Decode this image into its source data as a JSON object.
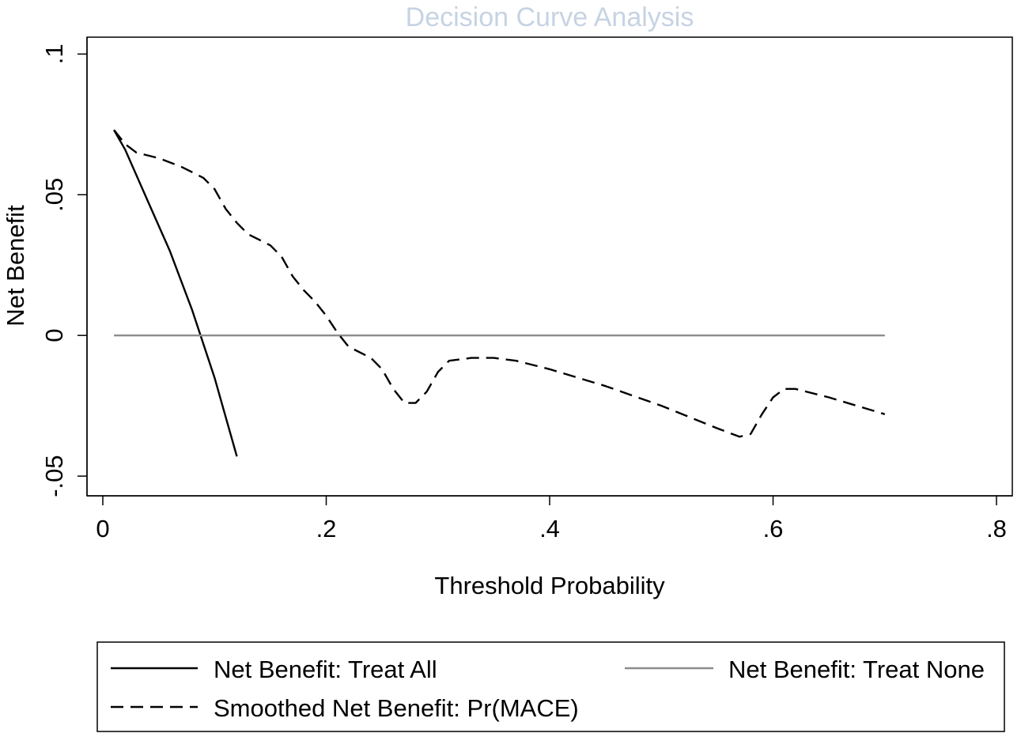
{
  "chart_data": {
    "type": "line",
    "title": "Decision Curve Analysis",
    "xlabel": "Threshold Probability",
    "ylabel": "Net Benefit",
    "xlim": [
      -0.02,
      0.8
    ],
    "ylim": [
      -0.057,
      0.106
    ],
    "xticks": [
      0,
      0.2,
      0.4,
      0.6,
      0.8
    ],
    "xtick_labels": [
      "0",
      ".2",
      ".4",
      ".6",
      ".8"
    ],
    "yticks": [
      -0.05,
      0,
      0.05,
      0.1
    ],
    "ytick_labels": [
      "-.05",
      "0",
      ".05",
      ".1"
    ],
    "grid": false,
    "series": [
      {
        "name": "Net Benefit: Treat All",
        "style": "solid",
        "color": "#000000",
        "x": [
          0.01,
          0.02,
          0.04,
          0.06,
          0.08,
          0.1,
          0.12
        ],
        "y": [
          0.073,
          0.066,
          0.048,
          0.03,
          0.009,
          -0.015,
          -0.043
        ]
      },
      {
        "name": "Net Benefit: Treat None",
        "style": "solid",
        "color": "#8c8c8c",
        "x": [
          0.01,
          0.7
        ],
        "y": [
          0,
          0
        ]
      },
      {
        "name": "Smoothed Net Benefit: Pr(MACE)",
        "style": "dashed",
        "color": "#000000",
        "x": [
          0.01,
          0.02,
          0.03,
          0.05,
          0.07,
          0.09,
          0.1,
          0.11,
          0.12,
          0.13,
          0.15,
          0.16,
          0.17,
          0.18,
          0.19,
          0.2,
          0.21,
          0.22,
          0.24,
          0.25,
          0.26,
          0.27,
          0.28,
          0.29,
          0.3,
          0.31,
          0.33,
          0.35,
          0.37,
          0.4,
          0.45,
          0.5,
          0.55,
          0.57,
          0.58,
          0.59,
          0.6,
          0.61,
          0.62,
          0.65,
          0.7
        ],
        "y": [
          0.073,
          0.068,
          0.065,
          0.063,
          0.06,
          0.056,
          0.052,
          0.045,
          0.04,
          0.036,
          0.032,
          0.028,
          0.021,
          0.016,
          0.012,
          0.007,
          0.001,
          -0.004,
          -0.008,
          -0.012,
          -0.019,
          -0.024,
          -0.024,
          -0.02,
          -0.013,
          -0.009,
          -0.008,
          -0.008,
          -0.009,
          -0.012,
          -0.018,
          -0.025,
          -0.033,
          -0.036,
          -0.035,
          -0.028,
          -0.022,
          -0.019,
          -0.019,
          -0.022,
          -0.028
        ]
      }
    ],
    "legend": {
      "placement": "bottom",
      "entries": [
        {
          "label": "Net Benefit: Treat All",
          "style": "solid",
          "color": "#000000"
        },
        {
          "label": "Net Benefit: Treat None",
          "style": "solid",
          "color": "#8c8c8c"
        },
        {
          "label": "Smoothed Net Benefit: Pr(MACE)",
          "style": "dashed",
          "color": "#000000"
        }
      ]
    }
  }
}
